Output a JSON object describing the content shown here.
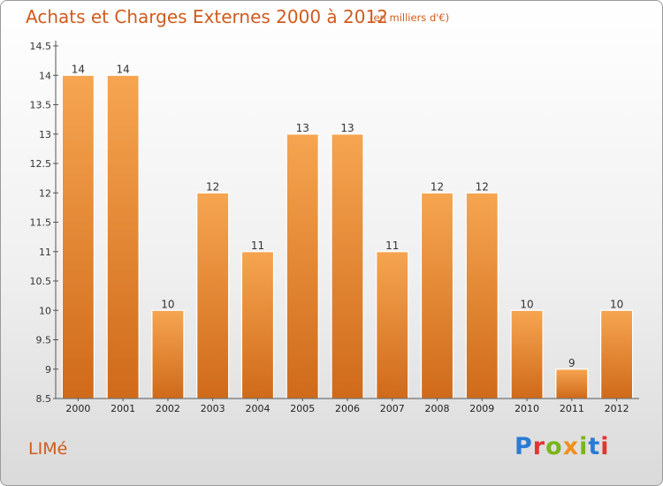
{
  "title": "Achats et Charges Externes 2000 à 2012",
  "subtitle": "(en milliers d'€)",
  "place": "LIMé",
  "logo": {
    "text": "Proxiti",
    "colors": [
      "#2a7bd4",
      "#e3342f",
      "#7ab51d",
      "#ef8f1c",
      "#7ab51d",
      "#2a7bd4",
      "#e3342f"
    ]
  },
  "colors": {
    "bar_top": "#f6a550",
    "bar_bottom": "#cf6a1a",
    "text_accent": "#d05b1d"
  },
  "chart_data": {
    "type": "bar",
    "categories": [
      "2000",
      "2001",
      "2002",
      "2003",
      "2004",
      "2005",
      "2006",
      "2007",
      "2008",
      "2009",
      "2010",
      "2011",
      "2012"
    ],
    "values": [
      14,
      14,
      10,
      12,
      11,
      13,
      13,
      11,
      12,
      12,
      10,
      9,
      10
    ],
    "data_labels": [
      "14",
      "14",
      "10",
      "12",
      "11",
      "13",
      "13",
      "11",
      "12",
      "12",
      "10",
      "9",
      "10"
    ],
    "ylim": [
      8.5,
      14.5
    ],
    "yticks": [
      8.5,
      9,
      9.5,
      10,
      10.5,
      11,
      11.5,
      12,
      12.5,
      13,
      13.5,
      14,
      14.5
    ],
    "ytick_labels": [
      "8.5",
      "9",
      "9.5",
      "10",
      "10.5",
      "11",
      "11.5",
      "12",
      "12.5",
      "13",
      "13.5",
      "14",
      "14.5"
    ],
    "grid": false,
    "legend": "none"
  }
}
